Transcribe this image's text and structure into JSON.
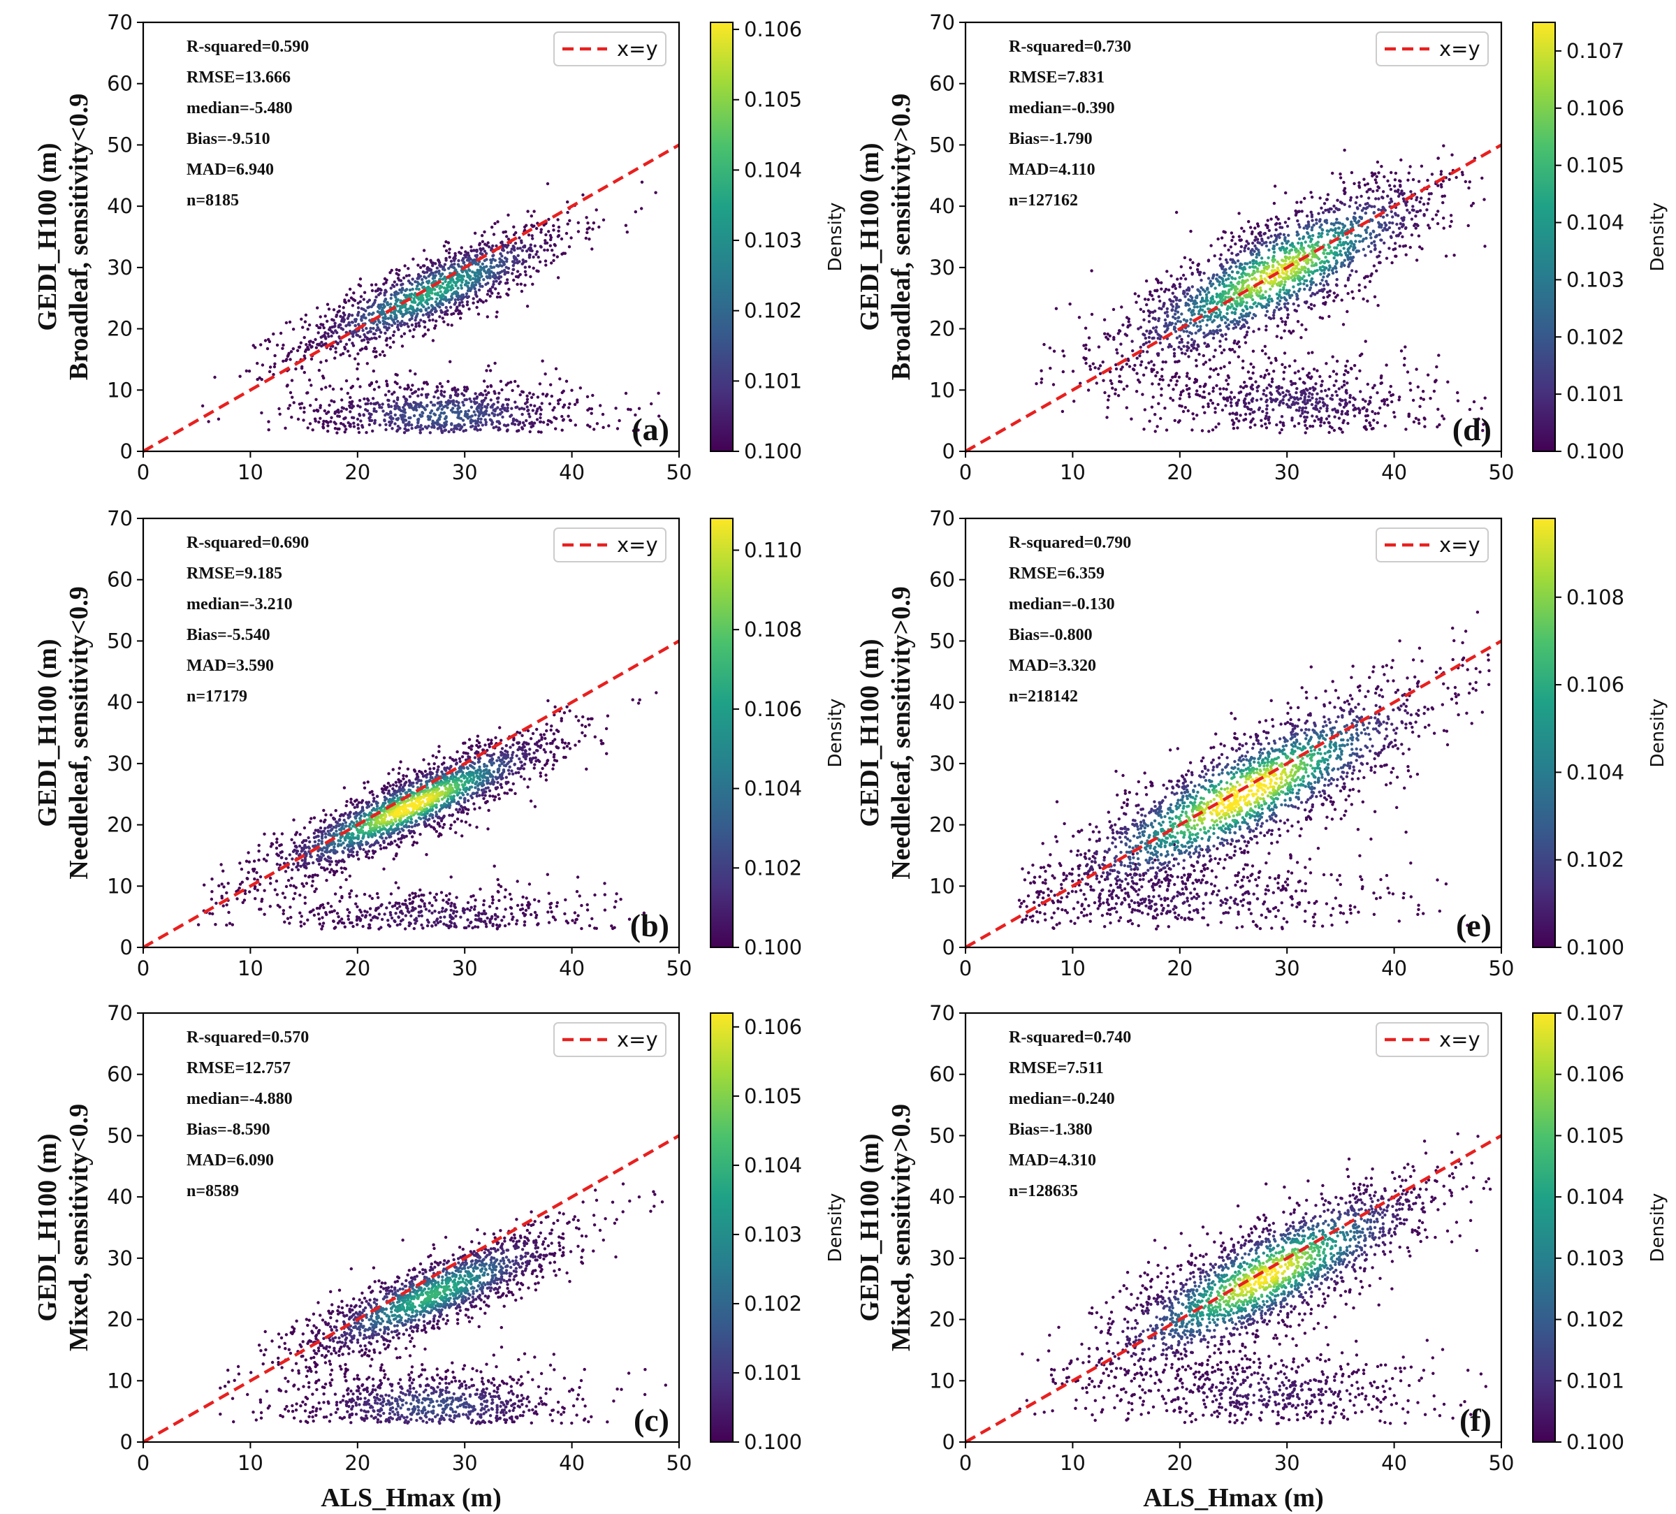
{
  "figure": {
    "x_axis_label": "ALS_Hmax (m)",
    "reference_line_label": "x=y",
    "colorbar_label": "Density",
    "colors": {
      "reference_line": "#e8201f",
      "colormap": [
        "#440154",
        "#46327e",
        "#365c8d",
        "#277f8e",
        "#1fa187",
        "#4ac16d",
        "#a0da39",
        "#fde725"
      ]
    }
  },
  "chart_data": [
    {
      "type": "scatter",
      "panel": "(a)",
      "ylabel_line1": "GEDI_H100 (m)",
      "ylabel_line2": "Broadleaf, sensitivity<0.9",
      "xlim": [
        0,
        50
      ],
      "ylim": [
        0,
        70
      ],
      "xticks": [
        0,
        10,
        20,
        30,
        40,
        50
      ],
      "yticks": [
        0,
        10,
        20,
        30,
        40,
        50,
        60,
        70
      ],
      "stats": [
        "R-squared=0.590",
        "RMSE=13.666",
        "median=-5.480",
        "Bias=-9.510",
        "MAD=6.940",
        "n=8185"
      ],
      "n": 8185,
      "clusters": [
        {
          "cx": 27,
          "cy": 26,
          "sx": 6.5,
          "sy": 5.5,
          "rho": 0.85,
          "weight": 0.6
        },
        {
          "cx": 28,
          "cy": 6,
          "sx": 7,
          "sy": 3,
          "rho": 0.0,
          "weight": 0.4
        }
      ],
      "colorbar": {
        "min": 0.1,
        "max": 0.1061,
        "ticks": [
          "0.100",
          "0.101",
          "0.102",
          "0.103",
          "0.104",
          "0.105",
          "0.106"
        ],
        "tick_values": [
          0.1,
          0.101,
          0.102,
          0.103,
          0.104,
          0.105,
          0.106
        ]
      }
    },
    {
      "type": "scatter",
      "panel": "(b)",
      "ylabel_line1": "GEDI_H100 (m)",
      "ylabel_line2": "Needleleaf, sensitivity<0.9",
      "xlim": [
        0,
        50
      ],
      "ylim": [
        0,
        70
      ],
      "xticks": [
        0,
        10,
        20,
        30,
        40,
        50
      ],
      "yticks": [
        0,
        10,
        20,
        30,
        40,
        50,
        60,
        70
      ],
      "stats": [
        "R-squared=0.690",
        "RMSE=9.185",
        "median=-3.210",
        "Bias=-5.540",
        "MAD=3.590",
        "n=17179"
      ],
      "n": 17179,
      "clusters": [
        {
          "cx": 25,
          "cy": 23,
          "sx": 7,
          "sy": 6,
          "rho": 0.9,
          "weight": 0.78
        },
        {
          "cx": 27,
          "cy": 5,
          "sx": 8,
          "sy": 2.5,
          "rho": 0.0,
          "weight": 0.22
        }
      ],
      "colorbar": {
        "min": 0.1,
        "max": 0.1108,
        "ticks": [
          "0.100",
          "0.102",
          "0.104",
          "0.106",
          "0.108",
          "0.110"
        ],
        "tick_values": [
          0.1,
          0.102,
          0.104,
          0.106,
          0.108,
          0.11
        ]
      }
    },
    {
      "type": "scatter",
      "panel": "(c)",
      "ylabel_line1": "GEDI_H100 (m)",
      "ylabel_line2": "Mixed, sensitivity<0.9",
      "xlim": [
        0,
        50
      ],
      "ylim": [
        0,
        70
      ],
      "xticks": [
        0,
        10,
        20,
        30,
        40,
        50
      ],
      "yticks": [
        0,
        10,
        20,
        30,
        40,
        50,
        60,
        70
      ],
      "stats": [
        "R-squared=0.570",
        "RMSE=12.757",
        "median=-4.880",
        "Bias=-8.590",
        "MAD=6.090",
        "n=8589"
      ],
      "n": 8589,
      "clusters": [
        {
          "cx": 27,
          "cy": 24,
          "sx": 6.5,
          "sy": 5.5,
          "rho": 0.85,
          "weight": 0.62
        },
        {
          "cx": 27,
          "cy": 6,
          "sx": 7,
          "sy": 3,
          "rho": 0.0,
          "weight": 0.38
        }
      ],
      "colorbar": {
        "min": 0.1,
        "max": 0.1062,
        "ticks": [
          "0.100",
          "0.101",
          "0.102",
          "0.103",
          "0.104",
          "0.105",
          "0.106"
        ],
        "tick_values": [
          0.1,
          0.101,
          0.102,
          0.103,
          0.104,
          0.105,
          0.106
        ]
      }
    },
    {
      "type": "scatter",
      "panel": "(d)",
      "ylabel_line1": "GEDI_H100 (m)",
      "ylabel_line2": "Broadleaf, sensitivity>0.9",
      "xlim": [
        0,
        50
      ],
      "ylim": [
        0,
        70
      ],
      "xticks": [
        0,
        10,
        20,
        30,
        40,
        50
      ],
      "yticks": [
        0,
        10,
        20,
        30,
        40,
        50,
        60,
        70
      ],
      "stats": [
        "R-squared=0.730",
        "RMSE=7.831",
        "median=-0.390",
        "Bias=-1.790",
        "MAD=4.110",
        "n=127162"
      ],
      "n": 127162,
      "clusters": [
        {
          "cx": 29,
          "cy": 29,
          "sx": 8,
          "sy": 8,
          "rho": 0.82,
          "weight": 0.75
        },
        {
          "cx": 31,
          "cy": 8,
          "sx": 7,
          "sy": 3.5,
          "rho": 0.0,
          "weight": 0.25
        }
      ],
      "colorbar": {
        "min": 0.1,
        "max": 0.1075,
        "ticks": [
          "0.100",
          "0.101",
          "0.102",
          "0.103",
          "0.104",
          "0.105",
          "0.106",
          "0.107"
        ],
        "tick_values": [
          0.1,
          0.101,
          0.102,
          0.103,
          0.104,
          0.105,
          0.106,
          0.107
        ]
      }
    },
    {
      "type": "scatter",
      "panel": "(e)",
      "ylabel_line1": "GEDI_H100 (m)",
      "ylabel_line2": "Needleleaf, sensitivity>0.9",
      "xlim": [
        0,
        50
      ],
      "ylim": [
        0,
        70
      ],
      "xticks": [
        0,
        10,
        20,
        30,
        40,
        50
      ],
      "yticks": [
        0,
        10,
        20,
        30,
        40,
        50,
        60,
        70
      ],
      "stats": [
        "R-squared=0.790",
        "RMSE=6.359",
        "median=-0.130",
        "Bias=-0.800",
        "MAD=3.320",
        "n=218142"
      ],
      "n": 218142,
      "clusters": [
        {
          "cx": 26,
          "cy": 25,
          "sx": 9,
          "sy": 9,
          "rho": 0.85,
          "weight": 0.8
        },
        {
          "cx": 20,
          "cy": 8,
          "sx": 10,
          "sy": 3.5,
          "rho": 0.0,
          "weight": 0.2
        }
      ],
      "colorbar": {
        "min": 0.1,
        "max": 0.1098,
        "ticks": [
          "0.100",
          "0.102",
          "0.104",
          "0.106",
          "0.108"
        ],
        "tick_values": [
          0.1,
          0.102,
          0.104,
          0.106,
          0.108
        ]
      }
    },
    {
      "type": "scatter",
      "panel": "(f)",
      "ylabel_line1": "GEDI_H100 (m)",
      "ylabel_line2": "Mixed, sensitivity>0.9",
      "xlim": [
        0,
        50
      ],
      "ylim": [
        0,
        70
      ],
      "xticks": [
        0,
        10,
        20,
        30,
        40,
        50
      ],
      "yticks": [
        0,
        10,
        20,
        30,
        40,
        50,
        60,
        70
      ],
      "stats": [
        "R-squared=0.740",
        "RMSE=7.511",
        "median=-0.240",
        "Bias=-1.380",
        "MAD=4.310",
        "n=128635"
      ],
      "n": 128635,
      "clusters": [
        {
          "cx": 28,
          "cy": 27,
          "sx": 8,
          "sy": 8,
          "rho": 0.83,
          "weight": 0.77
        },
        {
          "cx": 28,
          "cy": 8,
          "sx": 8,
          "sy": 3.5,
          "rho": 0.0,
          "weight": 0.23
        }
      ],
      "colorbar": {
        "min": 0.1,
        "max": 0.107,
        "ticks": [
          "0.100",
          "0.101",
          "0.102",
          "0.103",
          "0.104",
          "0.105",
          "0.106",
          "0.107"
        ],
        "tick_values": [
          0.1,
          0.101,
          0.102,
          0.103,
          0.104,
          0.105,
          0.106,
          0.107
        ]
      }
    }
  ]
}
